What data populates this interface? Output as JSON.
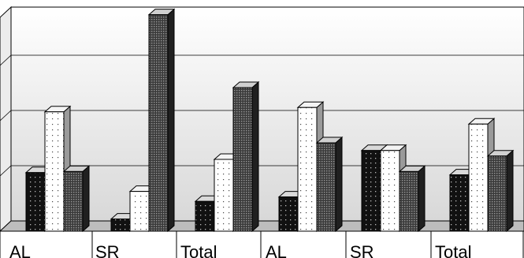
{
  "chart_data": {
    "type": "bar",
    "style": "3d-clustered-column",
    "categories": [
      "AL",
      "SR",
      "Total",
      "AL",
      "SR",
      "Total"
    ],
    "series": [
      {
        "values": [
          26.5,
          5.5,
          13.5,
          15.5,
          36.5,
          25.5
        ]
      },
      {
        "values": [
          54.0,
          18.0,
          32.5,
          56.0,
          36.5,
          48.5
        ]
      },
      {
        "values": [
          27.0,
          98.0,
          65.0,
          40.0,
          27.0,
          34.0
        ]
      }
    ],
    "ylim": [
      0,
      100
    ],
    "y_gridlines": [
      25,
      50,
      75,
      100
    ],
    "grid": true,
    "legend": "none",
    "series_fills": [
      "dark-dotted",
      "white-dotted",
      "gray-checkered"
    ],
    "colors": {
      "dark": "#111111",
      "white": "#ffffff",
      "gray": "#4a4a4a",
      "wall_top": "#ffffff",
      "wall_bottom": "#d8d8d8",
      "floor": "#bdbdbd"
    }
  }
}
